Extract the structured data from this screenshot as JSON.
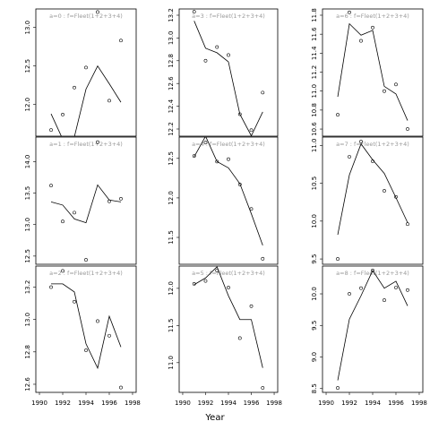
{
  "xlabel": "Year",
  "chart_data": [
    {
      "type": "line",
      "title": "a=0 : f=Fleet(1+2+3+4)",
      "x": [
        1991,
        1992,
        1993,
        1994,
        1995,
        1996,
        1997
      ],
      "series": [
        {
          "style": "points",
          "values": [
            11.67,
            11.87,
            12.22,
            12.48,
            13.2,
            12.05,
            12.83
          ]
        },
        {
          "style": "line",
          "values": [
            11.88,
            11.55,
            11.58,
            12.2,
            12.5,
            12.27,
            12.03
          ]
        }
      ],
      "xlim": [
        1989.69,
        1998.31
      ],
      "ylim": [
        11.59,
        13.24
      ],
      "yticks": [
        {
          "value": 12,
          "label": "12.0"
        },
        12.5,
        {
          "value": 13,
          "label": "13.0"
        }
      ]
    },
    {
      "type": "line",
      "title": "a=3 : f=Fleet(1+2+3+4)",
      "x": [
        1991,
        1992,
        1993,
        1994,
        1995,
        1996,
        1997
      ],
      "series": [
        {
          "style": "points",
          "values": [
            13.23,
            12.8,
            12.92,
            12.85,
            12.33,
            12.19,
            12.52
          ]
        },
        {
          "style": "line",
          "values": [
            13.15,
            12.91,
            12.87,
            12.79,
            12.33,
            12.14,
            12.35
          ]
        }
      ],
      "xlim": [
        1989.69,
        1998.31
      ],
      "ylim": [
        12.137,
        13.255
      ],
      "yticks": [
        12.2,
        12.4,
        12.6,
        12.8,
        {
          "value": 13,
          "label": "13.0"
        },
        13.2
      ]
    },
    {
      "type": "line",
      "title": "a=6 : f=Fleet(1+2+3+4)",
      "x": [
        1991,
        1992,
        1993,
        1994,
        1995,
        1996,
        1997
      ],
      "series": [
        {
          "style": "points",
          "values": [
            10.75,
            11.83,
            11.53,
            11.67,
            11.0,
            11.07,
            10.6
          ]
        },
        {
          "style": "line",
          "values": [
            10.94,
            11.71,
            11.59,
            11.64,
            11.05,
            10.97,
            10.69
          ]
        }
      ],
      "xlim": [
        1989.69,
        1998.31
      ],
      "ylim": [
        10.525,
        11.866
      ],
      "yticks": [
        10.6,
        10.8,
        {
          "value": 11,
          "label": "11.0"
        },
        11.2,
        11.4,
        11.6,
        11.8
      ]
    },
    {
      "type": "line",
      "title": "a=1 : f=Fleet(1+2+3+4)",
      "x": [
        1991,
        1992,
        1993,
        1994,
        1995,
        1996,
        1997
      ],
      "series": [
        {
          "style": "points",
          "values": [
            13.62,
            13.05,
            13.19,
            12.44,
            14.31,
            13.37,
            13.41
          ]
        },
        {
          "style": "line",
          "values": [
            13.36,
            13.31,
            13.09,
            13.03,
            13.63,
            13.39,
            13.36
          ]
        }
      ],
      "xlim": [
        1989.69,
        1998.31
      ],
      "ylim": [
        12.37,
        14.39
      ],
      "yticks": [
        12.5,
        {
          "value": 13,
          "label": "13.0"
        },
        13.5,
        {
          "value": 14,
          "label": "14.0"
        }
      ]
    },
    {
      "type": "line",
      "title": "a=4 : f=Fleet(1+2+3+4)",
      "x": [
        1991,
        1992,
        1993,
        1994,
        1995,
        1996,
        1997
      ],
      "series": [
        {
          "style": "points",
          "values": [
            12.53,
            12.7,
            12.46,
            12.49,
            12.17,
            11.86,
            11.23
          ]
        },
        {
          "style": "line",
          "values": [
            12.52,
            12.78,
            12.46,
            12.38,
            12.18,
            11.8,
            11.4
          ]
        }
      ],
      "xlim": [
        1989.69,
        1998.31
      ],
      "ylim": [
        11.16,
        12.77
      ],
      "yticks": [
        11.5,
        {
          "value": 12,
          "label": "12.0"
        },
        12.5
      ]
    },
    {
      "type": "line",
      "title": "a=7 : f=Fleet(1+2+3+4)",
      "x": [
        1991,
        1992,
        1993,
        1994,
        1995,
        1996,
        1997
      ],
      "series": [
        {
          "style": "points",
          "values": [
            9.5,
            10.85,
            11.05,
            10.79,
            10.4,
            10.32,
            9.96
          ]
        },
        {
          "style": "line",
          "values": [
            9.82,
            10.61,
            11.02,
            10.81,
            10.63,
            10.31,
            9.98
          ]
        }
      ],
      "xlim": [
        1989.69,
        1998.31
      ],
      "ylim": [
        9.43,
        11.11
      ],
      "yticks": [
        9.5,
        {
          "value": 10,
          "label": "10.0"
        },
        10.5,
        {
          "value": 11,
          "label": "11.0"
        }
      ]
    },
    {
      "type": "line",
      "title": "a=2 : f=Fleet(1+2+3+4)",
      "x": [
        1991,
        1992,
        1993,
        1994,
        1995,
        1996,
        1997
      ],
      "series": [
        {
          "style": "points",
          "values": [
            13.2,
            13.3,
            13.11,
            12.81,
            12.99,
            12.9,
            12.58
          ]
        },
        {
          "style": "line",
          "values": [
            13.22,
            13.22,
            13.17,
            12.85,
            12.7,
            13.02,
            12.83
          ]
        }
      ],
      "xlim": [
        1989.69,
        1998.31
      ],
      "xticks": [
        1990,
        1992,
        1994,
        1996,
        1998
      ],
      "ylim": [
        12.55,
        13.33
      ],
      "yticks": [
        12.6,
        12.8,
        {
          "value": 13,
          "label": "13.0"
        },
        13.2
      ]
    },
    {
      "type": "line",
      "title": "a=5 : f=Fleet(1+2+3+4)",
      "x": [
        1991,
        1992,
        1993,
        1994,
        1995,
        1996,
        1997
      ],
      "series": [
        {
          "style": "points",
          "values": [
            12.06,
            12.1,
            12.24,
            12.01,
            11.33,
            11.76,
            10.66
          ]
        },
        {
          "style": "line",
          "values": [
            12.05,
            12.14,
            12.29,
            11.9,
            11.58,
            11.58,
            10.93
          ]
        }
      ],
      "xlim": [
        1989.69,
        1998.31
      ],
      "xticks": [
        1990,
        1992,
        1994,
        1996,
        1998
      ],
      "ylim": [
        10.6,
        12.3
      ],
      "yticks": [
        {
          "value": 11,
          "label": "11.0"
        },
        11.5,
        {
          "value": 12,
          "label": "12.0"
        }
      ]
    },
    {
      "type": "line",
      "title": "a=8 : f=Fleet(1+2+3+4)",
      "x": [
        1991,
        1992,
        1993,
        1994,
        1995,
        1996,
        1997
      ],
      "series": [
        {
          "style": "points",
          "values": [
            8.51,
            10.0,
            10.09,
            10.37,
            9.9,
            10.1,
            10.06
          ]
        },
        {
          "style": "line",
          "values": [
            8.63,
            9.6,
            9.97,
            10.37,
            10.09,
            10.2,
            9.81
          ]
        }
      ],
      "xlim": [
        1989.69,
        1998.31
      ],
      "xticks": [
        1990,
        1992,
        1994,
        1996,
        1998
      ],
      "ylim": [
        8.44,
        10.44
      ],
      "yticks": [
        8.5,
        {
          "value": 9,
          "label": "9.0"
        },
        9.5,
        {
          "value": 10,
          "label": "10.0"
        }
      ]
    }
  ]
}
